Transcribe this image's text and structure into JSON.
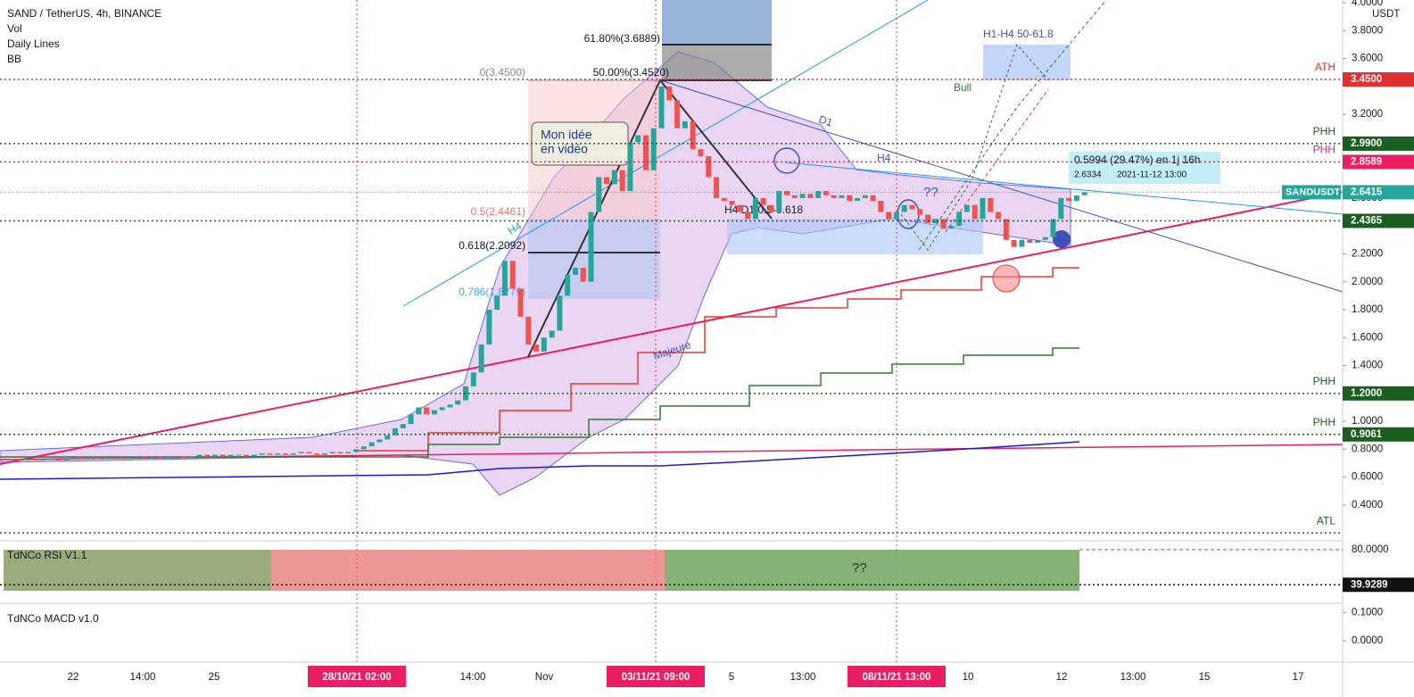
{
  "chart_data": {
    "type": "candlestick",
    "title": "SAND / TetherUS, 4h, BINANCE",
    "indicators": [
      "Vol",
      "Daily Lines",
      "BB"
    ],
    "symbol": "SANDUSDT",
    "currency": "USDT",
    "up_color": "#26a69a",
    "down_color": "#ef5350",
    "values": [
      0.72,
      0.73,
      0.72,
      0.73,
      0.72,
      0.73,
      0.73,
      0.72,
      0.73,
      0.74,
      0.73,
      0.74,
      0.73,
      0.74,
      0.74,
      0.73,
      0.74,
      0.75,
      0.74,
      0.75,
      0.74,
      0.75,
      0.75,
      0.74,
      0.75,
      0.76,
      0.75,
      0.76,
      0.75,
      0.76,
      0.76,
      0.75,
      0.76,
      0.77,
      0.76,
      0.77,
      0.76,
      0.77,
      0.78,
      0.77,
      0.76,
      0.77,
      0.78,
      0.77,
      0.78,
      0.8,
      0.82,
      0.85,
      0.87,
      0.9,
      0.95,
      0.98,
      1.05,
      1.1,
      1.05,
      1.08,
      1.1,
      1.12,
      1.15,
      1.25,
      1.35,
      1.55,
      1.8,
      1.9,
      2.15,
      1.95,
      1.75,
      1.55,
      1.5,
      1.6,
      1.65,
      1.9,
      2.05,
      2.1,
      2.0,
      2.5,
      2.75,
      2.7,
      2.8,
      2.65,
      3.0,
      3.05,
      2.8,
      3.1,
      3.4,
      3.3,
      3.1,
      3.15,
      2.95,
      2.9,
      2.75,
      2.6,
      2.58,
      2.55,
      2.5,
      2.45,
      2.6,
      2.55,
      2.5,
      2.65,
      2.62,
      2.6,
      2.63,
      2.6,
      2.65,
      2.62,
      2.6,
      2.62,
      2.58,
      2.6,
      2.62,
      2.58,
      2.5,
      2.45,
      2.5,
      2.55,
      2.52,
      2.48,
      2.42,
      2.45,
      2.38,
      2.4,
      2.5,
      2.55,
      2.45,
      2.6,
      2.5,
      2.45,
      2.3,
      2.25,
      2.3,
      2.28,
      2.3,
      2.32,
      2.45,
      2.6,
      2.58,
      2.62,
      2.6415
    ],
    "value_label": "2.6415",
    "ylim": [
      0.15,
      4.0
    ],
    "yticks": [
      {
        "value": 0.4,
        "label": "0.4000"
      },
      {
        "value": 0.6,
        "label": "0.6000"
      },
      {
        "value": 0.8,
        "label": "0.8000"
      },
      {
        "value": 1.0,
        "label": "1.0000"
      },
      {
        "value": 1.4,
        "label": "1.4000"
      },
      {
        "value": 1.6,
        "label": "1.6000"
      },
      {
        "value": 1.8,
        "label": "1.8000"
      },
      {
        "value": 2.0,
        "label": "2.0000"
      },
      {
        "value": 2.2,
        "label": "2.2000"
      },
      {
        "value": 2.6,
        "label": "2.6000"
      },
      {
        "value": 3.2,
        "label": "3.2000"
      },
      {
        "value": 3.6,
        "label": "3.6000"
      },
      {
        "value": 3.8,
        "label": "3.8000"
      },
      {
        "value": 4.0,
        "label": "4.0000"
      }
    ],
    "grid": false,
    "price_levels": [
      {
        "name": "ATH",
        "value": 3.45,
        "value_label": "3.4500",
        "color": "#e03030"
      },
      {
        "name": "PHH",
        "value": 2.99,
        "value_label": "2.9900",
        "color": "#1b5e20"
      },
      {
        "name": "PHH",
        "value": 2.8589,
        "value_label": "2.8589",
        "color": "#e91e63"
      },
      {
        "name": "PHH",
        "value": 1.2,
        "value_label": "1.2000",
        "color": "#1b5e20"
      },
      {
        "name": "PHH",
        "value": 0.9061,
        "value_label": "0.9061",
        "color": "#1b5e20"
      },
      {
        "name": "ATL",
        "value": 0.2,
        "value_label": null,
        "color": "#1b5e20"
      },
      {
        "name": null,
        "value": 2.4365,
        "value_label": "2.4365",
        "color": "#1b5e20"
      }
    ],
    "annotations": [
      "Mon idée",
      "en vidéo",
      "61.80%(3.6889)",
      "50.00%(3.4520)",
      "0(3.4500)",
      "0.5(2.4461)",
      "0.618(2.2092)",
      "0.786(1.8779)",
      "H4",
      "D1",
      "H4",
      "H4 D1 0.5-0.618",
      "Majeure",
      "H1-H4 50-61.8",
      "Bull",
      "??",
      "??",
      "0.5994 (29.47%) en 1j 16h",
      "2.6334",
      "2021-11-12 13:00"
    ],
    "time_labels": [
      {
        "label": "22"
      },
      {
        "label": "14:00"
      },
      {
        "label": "25"
      },
      {
        "label": "28/10/21  02:00",
        "highlight": true
      },
      {
        "label": "14:00"
      },
      {
        "label": "Nov"
      },
      {
        "label": "03/11/21  09:00",
        "highlight": true
      },
      {
        "label": "5"
      },
      {
        "label": "13:00"
      },
      {
        "label": "08/11/21  13:00",
        "highlight": true
      },
      {
        "label": "10"
      },
      {
        "label": "12"
      },
      {
        "label": "13:00"
      },
      {
        "label": "15"
      },
      {
        "label": "17"
      }
    ],
    "rsi": {
      "title": "TdNCo RSI V1.1",
      "ylim": [
        30,
        85
      ],
      "yticks": [
        {
          "value": 80,
          "label": "80.0000"
        }
      ],
      "value": 39.9289,
      "value_label": "39.9289"
    },
    "macd": {
      "title": "TdNCo MACD v1.0",
      "ylim": [
        -0.07,
        0.12
      ],
      "yticks": [
        {
          "value": 0.1,
          "label": "0.1000"
        },
        {
          "value": 0.0,
          "label": "0.0000"
        }
      ]
    }
  }
}
